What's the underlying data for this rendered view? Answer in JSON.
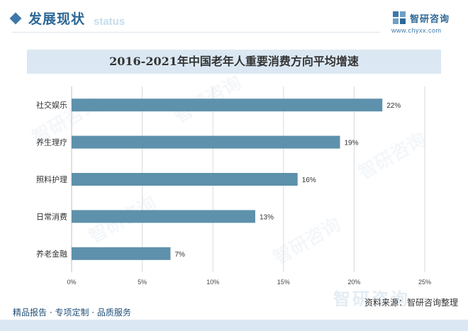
{
  "header": {
    "section_title": "发展现状",
    "section_subtitle": "status",
    "brand_name": "智研咨询",
    "brand_url": "www.chyxx.com"
  },
  "chart_data": {
    "type": "bar",
    "orientation": "horizontal",
    "title": "2016-2021年中国老年人重要消费方向平均增速",
    "categories": [
      "社交娱乐",
      "养生理疗",
      "照料护理",
      "日常消费",
      "养老金融"
    ],
    "values": [
      22,
      19,
      16,
      13,
      7
    ],
    "value_labels": [
      "22%",
      "19%",
      "16%",
      "13%",
      "7%"
    ],
    "xlim": [
      0,
      25
    ],
    "xticks": [
      0,
      5,
      10,
      15,
      20,
      25
    ],
    "xtick_labels": [
      "0%",
      "5%",
      "10%",
      "15%",
      "20%",
      "25%"
    ],
    "grid": "vertical",
    "bar_color": "#5e91ab",
    "grid_color": "#d9d9d9"
  },
  "footer": {
    "left": "精品报告 · 专项定制 · 品质服务",
    "source": "资料来源：智研咨询整理",
    "big_brand": "智研咨询"
  }
}
